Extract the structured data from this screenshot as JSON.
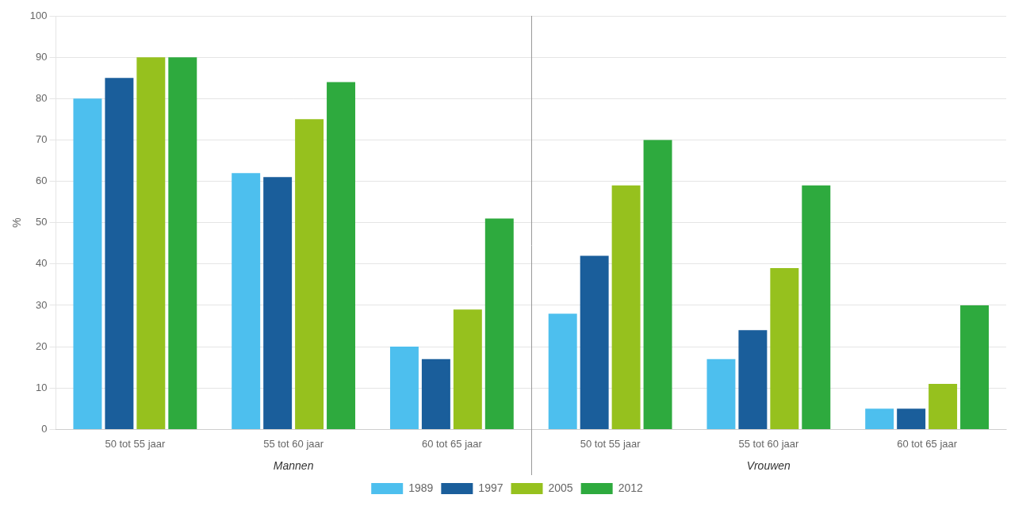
{
  "chart_data": {
    "type": "bar",
    "ylabel": "%",
    "categories": [
      "50 tot 55 jaar",
      "55 tot 60 jaar",
      "60 tot 65 jaar",
      "50 tot 55 jaar",
      "55 tot 60 jaar",
      "60 tot 65 jaar"
    ],
    "annotations": [
      "Mannen",
      "Vrouwen"
    ],
    "series": [
      {
        "name": "1989",
        "color": "#4DBFEE",
        "values": [
          80,
          62,
          20,
          28,
          17,
          5
        ]
      },
      {
        "name": "1997",
        "color": "#1A5E9B",
        "values": [
          85,
          61,
          17,
          42,
          24,
          5
        ]
      },
      {
        "name": "2005",
        "color": "#96C11E",
        "values": [
          90,
          75,
          29,
          59,
          39,
          11
        ]
      },
      {
        "name": "2012",
        "color": "#2EAA3E",
        "values": [
          90,
          84,
          51,
          70,
          59,
          30
        ]
      }
    ],
    "ylim": [
      0,
      100
    ],
    "yticks": [
      0,
      10,
      20,
      30,
      40,
      50,
      60,
      70,
      80,
      90,
      100
    ],
    "grid": true,
    "legend": "bottom"
  }
}
